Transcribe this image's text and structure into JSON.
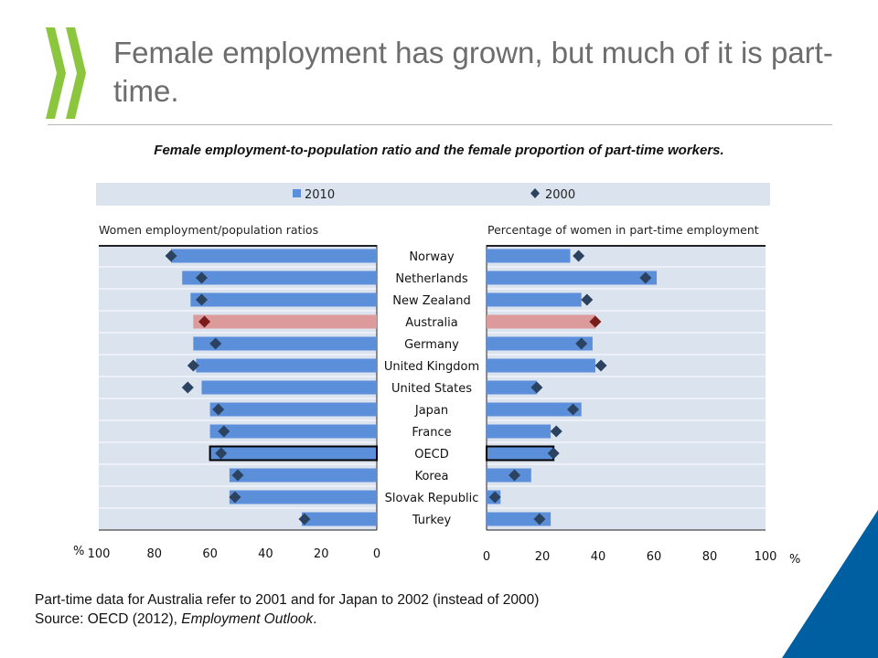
{
  "header": {
    "title": "Female employment has grown, but much of it is part-time."
  },
  "colors": {
    "bar": "#5b8fd9",
    "highlight_bar": "#dc9a9a",
    "marker": "#2b4360",
    "highlight_marker": "#7a1c1c",
    "plot_bg": "#dbe3ef",
    "logo": "#8cc63f",
    "corner": "#005fa0"
  },
  "chart_data": [
    {
      "type": "bar",
      "title": "Female employment-to-population ratio and the female proportion of part-time workers.",
      "subtitle": "Women employment/population ratios",
      "orientation": "horizontal",
      "x_axis_reversed": true,
      "categories": [
        "Norway",
        "Netherlands",
        "New Zealand",
        "Australia",
        "Germany",
        "United Kingdom",
        "United States",
        "Japan",
        "France",
        "OECD",
        "Korea",
        "Slovak Republic",
        "Turkey"
      ],
      "series": [
        {
          "name": "2010",
          "kind": "bar",
          "values": [
            74,
            70,
            67,
            66,
            66,
            65,
            63,
            60,
            60,
            60,
            53,
            53,
            27
          ]
        },
        {
          "name": "2000",
          "kind": "marker",
          "values": [
            74,
            63,
            63,
            62,
            58,
            66,
            68,
            57,
            55,
            56,
            50,
            51,
            26
          ]
        }
      ],
      "highlight": [
        "Australia"
      ],
      "outlined": [
        "OECD"
      ],
      "xlabel": "%",
      "xlim": [
        0,
        100
      ],
      "xticks": [
        "100",
        "80",
        "60",
        "40",
        "20",
        "0"
      ],
      "legend": "top"
    },
    {
      "type": "bar",
      "subtitle": "Percentage of women in part-time employment",
      "orientation": "horizontal",
      "categories": [
        "Norway",
        "Netherlands",
        "New Zealand",
        "Australia",
        "Germany",
        "United Kingdom",
        "United States",
        "Japan",
        "France",
        "OECD",
        "Korea",
        "Slovak Republic",
        "Turkey"
      ],
      "series": [
        {
          "name": "2010",
          "kind": "bar",
          "values": [
            30,
            61,
            34,
            39,
            38,
            39,
            18,
            34,
            23,
            24,
            16,
            5,
            23
          ]
        },
        {
          "name": "2000",
          "kind": "marker",
          "values": [
            33,
            57,
            36,
            39,
            34,
            41,
            18,
            31,
            25,
            24,
            10,
            3,
            19
          ]
        }
      ],
      "highlight": [
        "Australia"
      ],
      "outlined": [
        "OECD"
      ],
      "xlabel": "%",
      "xlim": [
        0,
        100
      ],
      "xticks": [
        "0",
        "20",
        "40",
        "60",
        "80",
        "100"
      ],
      "legend": "top"
    }
  ],
  "legend": [
    {
      "label": "2010",
      "symbol": "square"
    },
    {
      "label": "2000",
      "symbol": "diamond"
    }
  ],
  "footnote": {
    "line1": "Part-time data for Australia refer to 2001 and for Japan to 2002 (instead of 2000)",
    "source_prefix": "Source: OECD (2012), ",
    "source_title": "Employment Outlook",
    "source_suffix": "."
  }
}
